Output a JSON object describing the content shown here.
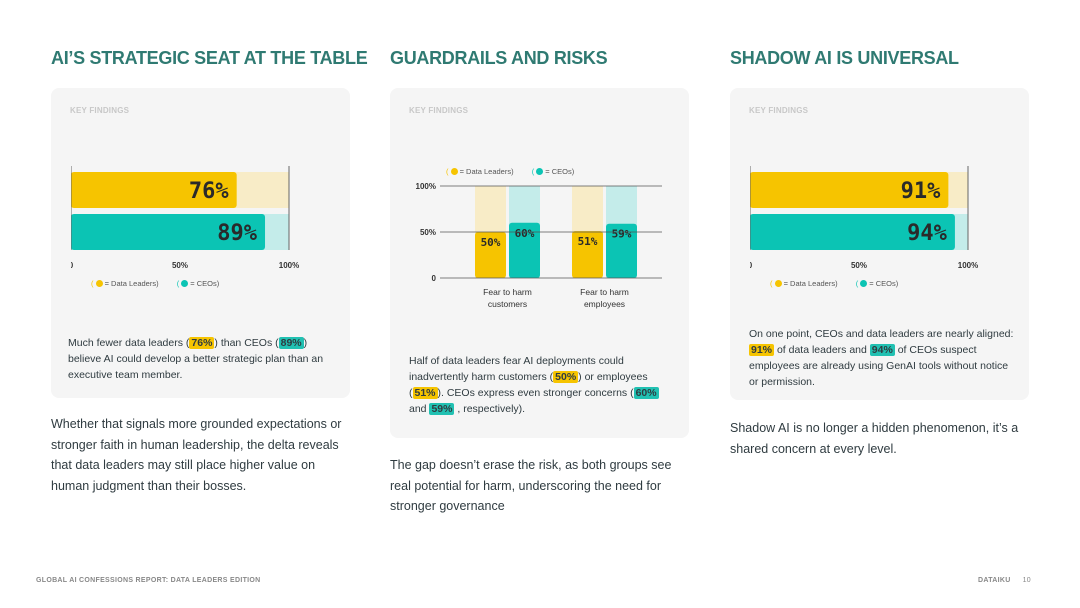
{
  "columns": [
    {
      "title": "AI’S STRATEGIC SEAT AT THE TABLE",
      "key_findings": "KEY FINDINGS",
      "legend": {
        "a": "= Data Leaders)",
        "b": "= CEOs)"
      },
      "caption": {
        "p1": "Much fewer data leaders (",
        "h1": "76%",
        "p2": ") than CEOs (",
        "h2": "89%",
        "p3": ") believe AI could develop a better strategic plan than an executive team member."
      },
      "body": "Whether that signals more grounded expectations or stronger faith in human leadership, the delta reveals that data leaders may still place higher value on human judgment than their bosses."
    },
    {
      "title": "GUARDRAILS AND RISKS",
      "key_findings": "KEY FINDINGS",
      "legend": {
        "a": "= Data Leaders)",
        "b": "= CEOs)"
      },
      "caption": {
        "p1": "Half of data leaders fear AI deployments could inadvertently harm customers (",
        "h1": "50%",
        "p2": ") or employees (",
        "h2": "51%",
        "p3": "). CEOs express even stronger concerns (",
        "h3": "60%",
        "p4": "and",
        "h4": "59%",
        "p5": ", respectively)."
      },
      "body": "The gap doesn’t erase the risk, as both groups see real potential for harm, underscoring the need for stronger governance"
    },
    {
      "title": "SHADOW AI IS UNIVERSAL",
      "key_findings": "KEY FINDINGS",
      "legend": {
        "a": "= Data Leaders)",
        "b": "= CEOs)"
      },
      "caption": {
        "p1": "On one point, CEOs and data leaders are nearly aligned:",
        "h1": "91%",
        "p2": "of data leaders and",
        "h2": "94%",
        "p3": "of CEOs suspect employees are already using GenAI tools without notice or permission."
      },
      "body": "Shadow AI is no longer a hidden phenomenon, it’s a shared concern at every level."
    }
  ],
  "chart_data": [
    {
      "type": "bar",
      "orientation": "horizontal",
      "categories": [
        "Data Leaders",
        "CEOs"
      ],
      "values": [
        76,
        89
      ],
      "value_labels": [
        "76%",
        "89%"
      ],
      "xlim": [
        0,
        100
      ],
      "xticks": [
        "0",
        "50%",
        "100%"
      ],
      "colors": [
        "#f6c400",
        "#0bc4b4"
      ],
      "track_colors": [
        "#f8ecc7",
        "#c4ecea"
      ]
    },
    {
      "type": "bar",
      "orientation": "vertical",
      "categories": [
        "Fear to harm customers",
        "Fear to harm employees"
      ],
      "category_lines": [
        [
          "Fear to harm",
          "customers"
        ],
        [
          "Fear to harm",
          "employees"
        ]
      ],
      "series": [
        {
          "name": "Data Leaders",
          "values": [
            50,
            51
          ],
          "labels": [
            "50%",
            "51%"
          ]
        },
        {
          "name": "CEOs",
          "values": [
            60,
            59
          ],
          "labels": [
            "60%",
            "59%"
          ]
        }
      ],
      "ylim": [
        0,
        100
      ],
      "yticks": [
        "0",
        "50%",
        "100%"
      ],
      "colors": [
        "#f6c400",
        "#0bc4b4"
      ],
      "track_colors": [
        "#f8ecc7",
        "#c4ecea"
      ]
    },
    {
      "type": "bar",
      "orientation": "horizontal",
      "categories": [
        "Data Leaders",
        "CEOs"
      ],
      "values": [
        91,
        94
      ],
      "value_labels": [
        "91%",
        "94%"
      ],
      "xlim": [
        0,
        100
      ],
      "xticks": [
        "0",
        "50%",
        "100%"
      ],
      "colors": [
        "#f6c400",
        "#0bc4b4"
      ],
      "track_colors": [
        "#f8ecc7",
        "#c4ecea"
      ]
    }
  ],
  "footer": {
    "left": "GLOBAL AI CONFESSIONS REPORT: DATA LEADERS EDITION",
    "brand": "DATAIKU",
    "page": "10"
  }
}
